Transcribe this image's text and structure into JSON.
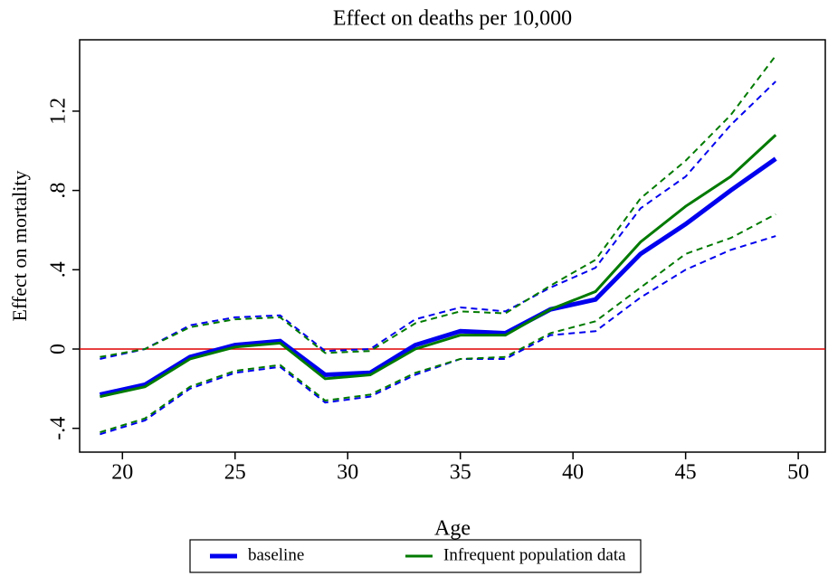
{
  "chart_data": {
    "type": "line",
    "title": "Effect on deaths per 10,000",
    "x_label": "Age",
    "y_label": "Effect on mortality",
    "x": [
      19,
      21,
      23,
      25,
      27,
      29,
      31,
      33,
      35,
      37,
      39,
      41,
      43,
      45,
      47,
      49
    ],
    "series": [
      {
        "name": "baseline",
        "color": "#0000ee",
        "values": [
          -0.23,
          -0.18,
          -0.04,
          0.02,
          0.04,
          -0.13,
          -0.12,
          0.02,
          0.09,
          0.08,
          0.2,
          0.25,
          0.48,
          0.63,
          0.8,
          0.96
        ],
        "upper": [
          -0.05,
          0.0,
          0.12,
          0.16,
          0.17,
          -0.01,
          0.0,
          0.15,
          0.21,
          0.19,
          0.31,
          0.41,
          0.71,
          0.87,
          1.13,
          1.35
        ],
        "lower": [
          -0.43,
          -0.36,
          -0.2,
          -0.12,
          -0.09,
          -0.27,
          -0.24,
          -0.13,
          -0.05,
          -0.05,
          0.07,
          0.09,
          0.26,
          0.4,
          0.5,
          0.57
        ]
      },
      {
        "name": "Infrequent population data",
        "color": "#007a00",
        "values": [
          -0.24,
          -0.19,
          -0.05,
          0.01,
          0.03,
          -0.15,
          -0.13,
          0.0,
          0.07,
          0.07,
          0.2,
          0.29,
          0.54,
          0.72,
          0.87,
          1.08
        ],
        "upper": [
          -0.04,
          0.0,
          0.11,
          0.15,
          0.16,
          -0.02,
          -0.01,
          0.13,
          0.19,
          0.18,
          0.32,
          0.45,
          0.76,
          0.95,
          1.18,
          1.48
        ],
        "lower": [
          -0.42,
          -0.35,
          -0.19,
          -0.11,
          -0.08,
          -0.26,
          -0.23,
          -0.12,
          -0.05,
          -0.04,
          0.08,
          0.14,
          0.31,
          0.48,
          0.56,
          0.68
        ]
      }
    ],
    "reference_line": {
      "value": 0,
      "color": "#e00000"
    },
    "xlim": [
      18.1,
      51.2
    ],
    "xticks": [
      20,
      25,
      30,
      35,
      40,
      45,
      50
    ],
    "ylim": [
      -0.52,
      1.56
    ],
    "yticks": [
      {
        "value": -0.4,
        "label": "-.4"
      },
      0,
      {
        "value": 0.4,
        "label": ".4"
      },
      {
        "value": 0.8,
        "label": ".8"
      },
      1.2
    ],
    "grid": false,
    "legend": "bottom"
  }
}
